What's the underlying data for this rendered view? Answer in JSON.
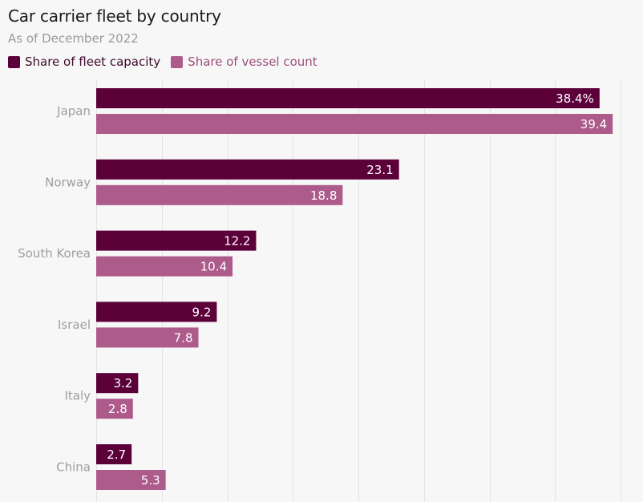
{
  "chart_data": {
    "type": "bar",
    "orientation": "horizontal",
    "title": "Car carrier fleet by country",
    "subtitle": "As of December 2022",
    "categories": [
      "Japan",
      "Norway",
      "South Korea",
      "Israel",
      "Italy",
      "China"
    ],
    "series": [
      {
        "name": "Share of fleet capacity",
        "color": "#5c003a",
        "values": [
          38.4,
          23.1,
          12.2,
          9.2,
          3.2,
          2.7
        ],
        "labels": [
          "38.4%",
          "23.1",
          "12.2",
          "9.2",
          "3.2",
          "2.7"
        ]
      },
      {
        "name": "Share of vessel count",
        "color": "#ad5b8b",
        "values": [
          39.4,
          18.8,
          10.4,
          7.8,
          2.8,
          5.3
        ],
        "labels": [
          "39.4",
          "18.8",
          "10.4",
          "7.8",
          "2.8",
          "5.3"
        ]
      }
    ],
    "xlim": [
      0,
      40
    ],
    "grid_step": 5,
    "grid": true,
    "legend_position": "top-left",
    "label_color": "#9e9e9e",
    "grid_color": "#e3e3e3"
  }
}
